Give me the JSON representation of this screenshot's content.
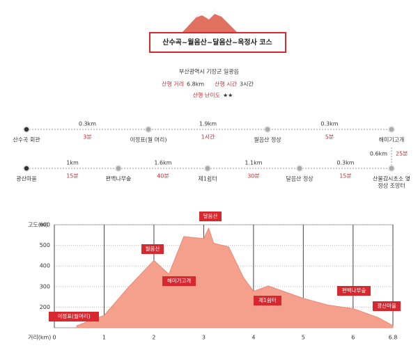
{
  "header": {
    "title": "산수곡~월음산~달음산~옥정사 코스"
  },
  "info": {
    "location": "부산광역시 기장군 일광읍",
    "distance_label": "산행 거리",
    "distance": "6.8km",
    "time_label": "산행 시간",
    "time": "3시간",
    "difficulty_label": "산행 난이도",
    "difficulty": "★★"
  },
  "route": {
    "row1": {
      "nodes": [
        "산수곡 회관",
        "이정표(월 머리)",
        "월음산 정상",
        "해미기고개"
      ],
      "distances": [
        "0.3km",
        "1.9km",
        "0.3km"
      ],
      "times": [
        "3분",
        "1시간",
        "5분"
      ]
    },
    "connector": {
      "distance": "0.6km",
      "time": "25분"
    },
    "row2": {
      "nodes": [
        "광산마을",
        "편백나무숲",
        "제1쉼터",
        "달음산 정상",
        [
          "산불감시초소 옆",
          "정상 조망터"
        ]
      ],
      "distances": [
        "1km",
        "1.6km",
        "1.1km",
        "0.3km"
      ],
      "times": [
        "15분",
        "40분",
        "30분",
        "15분"
      ]
    }
  },
  "chart_data": {
    "type": "area",
    "y_label": "고도(m)",
    "x_label": "거리(km)",
    "color": "#f4a08c",
    "x": [
      0.45,
      1,
      1.5,
      2,
      2.3,
      2.6,
      3,
      3.1,
      3.2,
      3.5,
      3.8,
      4,
      4.3,
      4.6,
      5,
      5.5,
      6,
      6.5,
      6.8
    ],
    "values": [
      110,
      160,
      300,
      427,
      360,
      543,
      533,
      583,
      510,
      493,
      343,
      277,
      303,
      277,
      243,
      210,
      193,
      150,
      110
    ],
    "xlim": [
      0,
      6.8
    ],
    "xticks": [
      0,
      1,
      2,
      3,
      4,
      5,
      6,
      6.8
    ],
    "ylim": [
      100,
      600
    ],
    "yticks": [
      200,
      300,
      400,
      500,
      600
    ],
    "grid": true,
    "annotations": [
      "이정표(월머리)",
      "월음산",
      "해미기고개",
      "달음산",
      "제1쉼터",
      "편백나무숲",
      "광산마을"
    ]
  }
}
